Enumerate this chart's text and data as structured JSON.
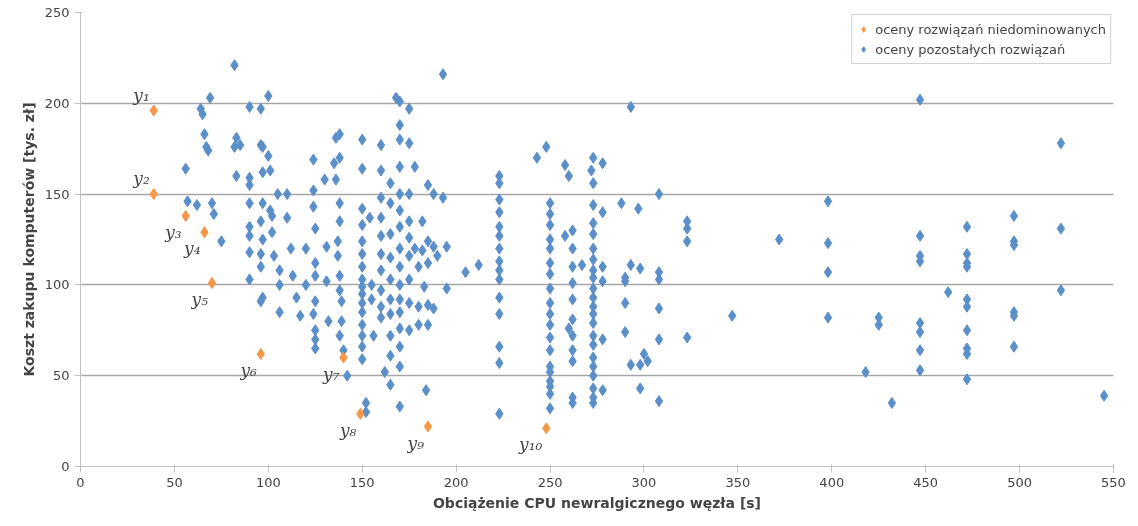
{
  "chart_data": {
    "type": "scatter",
    "xlabel": "Obciążenie CPU newralgicznego węzła [s]",
    "ylabel": "Koszt zakupu komputerów [tys. zł]",
    "xlim": [
      0,
      550
    ],
    "xticks": [
      0,
      50,
      100,
      150,
      200,
      250,
      300,
      350,
      400,
      450,
      500,
      550
    ],
    "ylim": [
      0,
      250
    ],
    "yticks": [
      0,
      50,
      100,
      150,
      200,
      250
    ],
    "grid": "y",
    "legend": "top right",
    "marker": "diamond",
    "series": [
      {
        "name": "oceny rozwiązań niedominowanych",
        "color": "#f79646",
        "x": [
          39,
          39,
          56,
          66,
          70,
          96,
          140,
          149,
          185,
          248
        ],
        "values": [
          196,
          150,
          138,
          129,
          101,
          62,
          60,
          29,
          22,
          21
        ]
      },
      {
        "name": "oceny pozostałych rozwiązań",
        "color": "#5b8fc9",
        "x": [
          56,
          57,
          62,
          64,
          65,
          66,
          67,
          68,
          69,
          70,
          71,
          75,
          82,
          83,
          82,
          83,
          85,
          90,
          90,
          90,
          90,
          90,
          90,
          90,
          90,
          96,
          96,
          97,
          97,
          97,
          96,
          97,
          96,
          96,
          97,
          96,
          100,
          100,
          101,
          101,
          102,
          102,
          103,
          105,
          106,
          106,
          106,
          110,
          110,
          112,
          113,
          115,
          117,
          120,
          120,
          124,
          124,
          124,
          125,
          125,
          125,
          125,
          124,
          125,
          125,
          125,
          130,
          131,
          131,
          132,
          135,
          136,
          138,
          138,
          136,
          138,
          138,
          137,
          137,
          138,
          138,
          139,
          139,
          138,
          140,
          142,
          150,
          150,
          150,
          150,
          150,
          150,
          150,
          150,
          150,
          150,
          150,
          150,
          150,
          150,
          150,
          150,
          152,
          152,
          154,
          155,
          155,
          156,
          160,
          160,
          160,
          160,
          160,
          160,
          160,
          160,
          160,
          160,
          162,
          165,
          165,
          165,
          165,
          165,
          165,
          165,
          165,
          165,
          165,
          168,
          170,
          170,
          170,
          170,
          170,
          170,
          170,
          170,
          170,
          170,
          170,
          170,
          170,
          170,
          170,
          170,
          175,
          175,
          175,
          175,
          175,
          175,
          175,
          175,
          175,
          178,
          178,
          180,
          180,
          180,
          182,
          182,
          183,
          184,
          185,
          185,
          185,
          185,
          185,
          188,
          188,
          188,
          190,
          193,
          193,
          195,
          195,
          205,
          212,
          223,
          223,
          223,
          223,
          223,
          223,
          223,
          223,
          223,
          223,
          223,
          223,
          223,
          223,
          223,
          243,
          248,
          250,
          250,
          250,
          250,
          250,
          250,
          250,
          250,
          250,
          250,
          250,
          250,
          250,
          250,
          250,
          250,
          250,
          250,
          250,
          258,
          260,
          262,
          262,
          262,
          262,
          262,
          262,
          262,
          262,
          262,
          262,
          262,
          258,
          260,
          267,
          273,
          272,
          273,
          273,
          273,
          273,
          273,
          273,
          273,
          273,
          273,
          273,
          273,
          273,
          273,
          273,
          273,
          273,
          273,
          273,
          273,
          273,
          273,
          278,
          278,
          278,
          278,
          278,
          278,
          288,
          290,
          290,
          290,
          290,
          293,
          293,
          293,
          297,
          298,
          298,
          298,
          300,
          302,
          308,
          308,
          308,
          308,
          308,
          308,
          323,
          323,
          323,
          323,
          347,
          372,
          398,
          398,
          398,
          398,
          418,
          425,
          425,
          432,
          447,
          447,
          447,
          447,
          447,
          447,
          447,
          447,
          462,
          472,
          472,
          472,
          472,
          472,
          472,
          472,
          472,
          472,
          472,
          497,
          497,
          497,
          497,
          497,
          497,
          522,
          522,
          522,
          545
        ],
        "values": [
          164,
          146,
          144,
          197,
          194,
          183,
          176,
          174,
          203,
          145,
          139,
          124,
          221,
          181,
          176,
          160,
          177,
          198,
          159,
          155,
          145,
          132,
          127,
          118,
          103,
          197,
          177,
          176,
          162,
          145,
          135,
          125,
          117,
          110,
          93,
          91,
          204,
          171,
          163,
          141,
          138,
          129,
          116,
          150,
          108,
          100,
          85,
          150,
          137,
          120,
          105,
          93,
          83,
          120,
          100,
          169,
          152,
          143,
          131,
          112,
          105,
          91,
          84,
          75,
          70,
          65,
          158,
          121,
          102,
          80,
          167,
          181,
          183,
          170,
          158,
          145,
          135,
          124,
          116,
          105,
          97,
          91,
          80,
          72,
          64,
          50,
          180,
          164,
          142,
          133,
          124,
          117,
          110,
          103,
          99,
          95,
          90,
          85,
          78,
          72,
          66,
          59,
          35,
          30,
          137,
          100,
          92,
          72,
          177,
          163,
          148,
          137,
          127,
          117,
          108,
          97,
          88,
          82,
          52,
          156,
          145,
          128,
          115,
          103,
          92,
          84,
          72,
          61,
          45,
          203,
          201,
          188,
          180,
          165,
          150,
          141,
          132,
          120,
          110,
          100,
          92,
          85,
          76,
          66,
          55,
          33,
          197,
          178,
          150,
          135,
          126,
          116,
          103,
          90,
          75,
          165,
          120,
          110,
          88,
          78,
          135,
          119,
          99,
          42,
          155,
          124,
          112,
          89,
          78,
          150,
          121,
          87,
          116,
          216,
          148,
          98,
          121,
          107,
          111,
          160,
          156,
          147,
          140,
          132,
          127,
          120,
          113,
          108,
          103,
          93,
          84,
          66,
          57,
          29,
          170,
          176,
          145,
          139,
          133,
          125,
          120,
          112,
          106,
          98,
          90,
          84,
          78,
          71,
          64,
          55,
          52,
          47,
          44,
          40,
          32,
          166,
          160,
          130,
          120,
          110,
          101,
          92,
          81,
          72,
          64,
          58,
          38,
          35,
          127,
          76,
          111,
          170,
          163,
          156,
          144,
          134,
          128,
          120,
          114,
          108,
          104,
          98,
          93,
          88,
          84,
          79,
          72,
          67,
          60,
          55,
          50,
          43,
          38,
          35,
          167,
          140,
          110,
          102,
          70,
          42,
          145,
          104,
          90,
          74,
          102,
          198,
          111,
          56,
          142,
          109,
          56,
          43,
          62,
          58,
          150,
          107,
          103,
          87,
          70,
          36,
          135,
          131,
          124,
          71,
          83,
          125,
          146,
          123,
          107,
          82,
          52,
          82,
          78,
          35,
          202,
          127,
          116,
          113,
          79,
          74,
          64,
          53,
          96,
          132,
          117,
          112,
          110,
          92,
          88,
          75,
          65,
          62,
          48,
          138,
          124,
          122,
          85,
          83,
          66,
          178,
          131,
          97,
          39
        ]
      }
    ],
    "annotations": [
      {
        "text": "y₁",
        "x": 39,
        "y": 196
      },
      {
        "text": "y₂",
        "x": 39,
        "y": 150
      },
      {
        "text": "y₃",
        "x": 56,
        "y": 138
      },
      {
        "text": "y₄",
        "x": 66,
        "y": 129
      },
      {
        "text": "y₅",
        "x": 70,
        "y": 101
      },
      {
        "text": "y₆",
        "x": 96,
        "y": 62
      },
      {
        "text": "y₇",
        "x": 140,
        "y": 60
      },
      {
        "text": "y₈",
        "x": 149,
        "y": 29
      },
      {
        "text": "y₉",
        "x": 185,
        "y": 22
      },
      {
        "text": "y₁₀",
        "x": 248,
        "y": 21
      }
    ]
  }
}
